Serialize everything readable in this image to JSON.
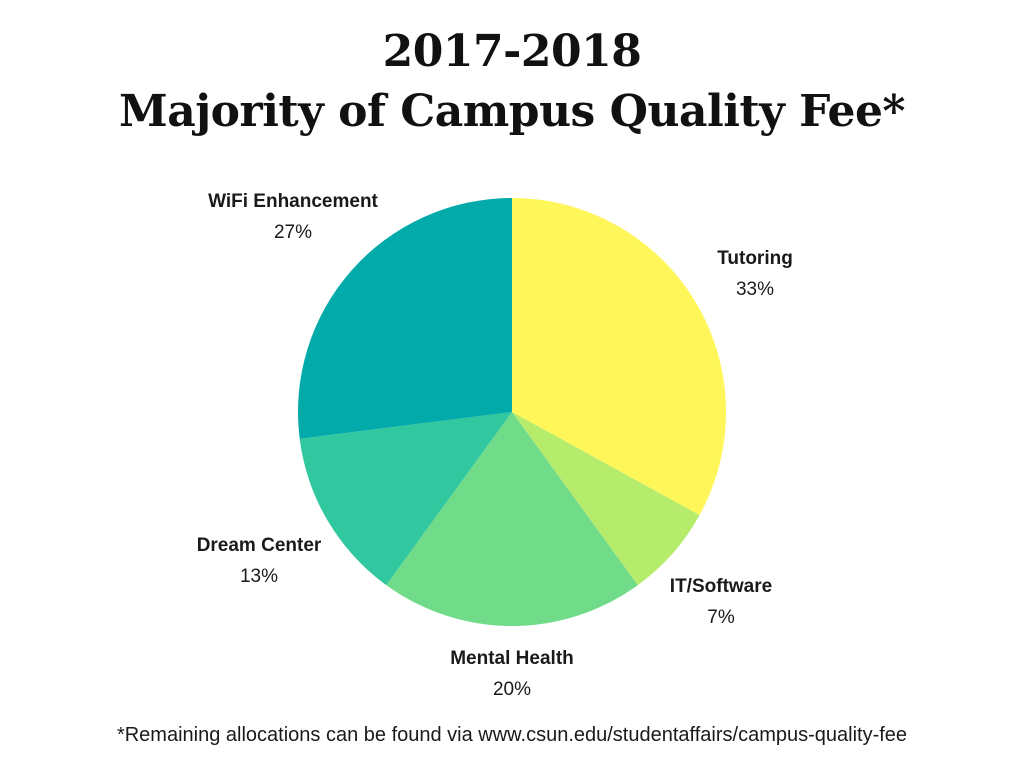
{
  "chart_data": {
    "type": "pie",
    "title_line1": "2017-2018",
    "title_line2": "Majority of Campus Quality Fee*",
    "start_angle_deg": 0,
    "direction": "clockwise",
    "slices": [
      {
        "label": "Tutoring",
        "value": 33,
        "display": "33%",
        "color": "#FFF65A"
      },
      {
        "label": "IT/Software",
        "value": 7,
        "display": "7%",
        "color": "#B5EC6B"
      },
      {
        "label": "Mental Health",
        "value": 20,
        "display": "20%",
        "color": "#70DB88"
      },
      {
        "label": "Dream Center",
        "value": 13,
        "display": "13%",
        "color": "#31C79F"
      },
      {
        "label": "WiFi Enhancement",
        "value": 27,
        "display": "27%",
        "color": "#02AAAA"
      }
    ]
  },
  "footnote": "*Remaining allocations can be found via www.csun.edu/studentaffairs/campus-quality-fee"
}
